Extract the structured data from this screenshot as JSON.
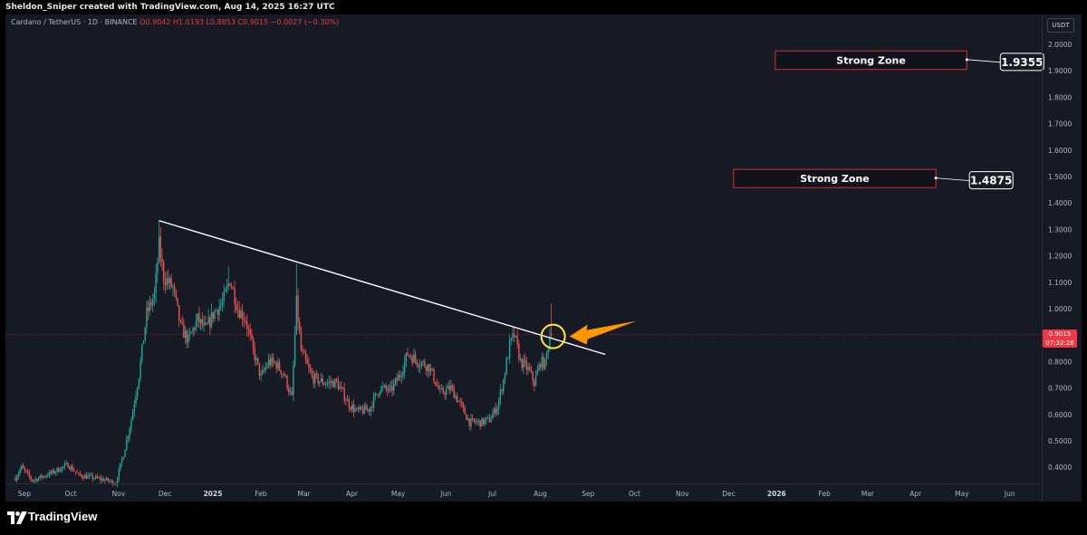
{
  "header": {
    "attribution": "Sheldon_Sniper created with TradingView.com, Aug 14, 2025 16:27 UTC"
  },
  "legend": {
    "symbol": "Cardano / TetherUS · 1D · BINANCE",
    "ohlc": "O0.9042 H1.0193 L0.8853 C0.9015 −0.0027 (−0.30%)"
  },
  "currency_label": "USDT",
  "current_price": {
    "value": "0.9015",
    "countdown": "07:32:26"
  },
  "brand": {
    "name": "TradingView"
  },
  "colors": {
    "background": "#161a25",
    "up": "#26a69a",
    "down": "#ef5350",
    "trendline": "#ffffff",
    "zone_border": "#d32f2f",
    "highlight_circle": "#ffeb3b",
    "arrow": "#ff9800"
  },
  "chart_data": {
    "type": "candlestick",
    "y_ticks": [
      "0.4000",
      "0.5000",
      "0.6000",
      "0.7000",
      "0.8000",
      "0.9000",
      "1.0000",
      "1.1000",
      "1.2000",
      "1.3000",
      "1.4000",
      "1.5000",
      "1.6000",
      "1.7000",
      "1.8000",
      "1.9000",
      "2.0000"
    ],
    "ylim": [
      0.35,
      2.05
    ],
    "x_ticks": [
      "Sep",
      "Oct",
      "Nov",
      "Dec",
      "2025",
      "Feb",
      "Mar",
      "Apr",
      "May",
      "Jun",
      "Jul",
      "Aug",
      "Sep",
      "Oct",
      "Nov",
      "Dec",
      "2026",
      "Feb",
      "Mar",
      "Apr",
      "May",
      "Jun"
    ],
    "price_path": [
      [
        "2024-09-01",
        0.36
      ],
      [
        "2024-09-05",
        0.4
      ],
      [
        "2024-09-12",
        0.35
      ],
      [
        "2024-09-25",
        0.38
      ],
      [
        "2024-10-05",
        0.41
      ],
      [
        "2024-10-12",
        0.37
      ],
      [
        "2024-10-22",
        0.36
      ],
      [
        "2024-10-31",
        0.35
      ],
      [
        "2024-11-05",
        0.34
      ],
      [
        "2024-11-10",
        0.45
      ],
      [
        "2024-11-15",
        0.58
      ],
      [
        "2024-11-20",
        0.75
      ],
      [
        "2024-11-25",
        0.98
      ],
      [
        "2024-11-30",
        1.05
      ],
      [
        "2024-12-03",
        1.24
      ],
      [
        "2024-12-06",
        1.12
      ],
      [
        "2024-12-12",
        1.08
      ],
      [
        "2024-12-17",
        0.93
      ],
      [
        "2024-12-22",
        0.88
      ],
      [
        "2024-12-28",
        0.96
      ],
      [
        "2025-01-02",
        0.92
      ],
      [
        "2025-01-08",
        0.99
      ],
      [
        "2025-01-13",
        1.02
      ],
      [
        "2025-01-18",
        1.11
      ],
      [
        "2025-01-23",
        1.0
      ],
      [
        "2025-01-28",
        0.96
      ],
      [
        "2025-02-02",
        0.84
      ],
      [
        "2025-02-07",
        0.74
      ],
      [
        "2025-02-12",
        0.8
      ],
      [
        "2025-02-17",
        0.79
      ],
      [
        "2025-02-22",
        0.75
      ],
      [
        "2025-02-27",
        0.66
      ],
      [
        "2025-03-02",
        1.02
      ],
      [
        "2025-03-05",
        0.84
      ],
      [
        "2025-03-12",
        0.74
      ],
      [
        "2025-03-20",
        0.72
      ],
      [
        "2025-03-28",
        0.72
      ],
      [
        "2025-04-05",
        0.64
      ],
      [
        "2025-04-10",
        0.61
      ],
      [
        "2025-04-18",
        0.62
      ],
      [
        "2025-04-25",
        0.7
      ],
      [
        "2025-05-02",
        0.69
      ],
      [
        "2025-05-08",
        0.75
      ],
      [
        "2025-05-13",
        0.83
      ],
      [
        "2025-05-20",
        0.8
      ],
      [
        "2025-05-27",
        0.78
      ],
      [
        "2025-06-03",
        0.68
      ],
      [
        "2025-06-10",
        0.7
      ],
      [
        "2025-06-15",
        0.65
      ],
      [
        "2025-06-22",
        0.57
      ],
      [
        "2025-06-30",
        0.57
      ],
      [
        "2025-07-05",
        0.58
      ],
      [
        "2025-07-10",
        0.63
      ],
      [
        "2025-07-14",
        0.73
      ],
      [
        "2025-07-18",
        0.86
      ],
      [
        "2025-07-21",
        0.9
      ],
      [
        "2025-07-25",
        0.8
      ],
      [
        "2025-07-30",
        0.77
      ],
      [
        "2025-08-03",
        0.72
      ],
      [
        "2025-08-07",
        0.8
      ],
      [
        "2025-08-10",
        0.79
      ],
      [
        "2025-08-13",
        0.9
      ]
    ],
    "last_candle": {
      "date": "2025-08-14",
      "open": 0.9042,
      "high": 1.0193,
      "low": 0.8853,
      "close": 0.9015
    },
    "trendline": {
      "start": [
        "2024-12-03",
        1.333
      ],
      "end": [
        "2025-09-18",
        0.827
      ]
    },
    "zones": [
      {
        "label": "Strong Zone",
        "value": "1.9355",
        "date_from": "2026-01-06",
        "date_to": "2026-05-10",
        "low": 1.905,
        "high": 1.975
      },
      {
        "label": "Strong Zone",
        "value": "1.4875",
        "date_from": "2025-12-10",
        "date_to": "2026-04-20",
        "low": 1.458,
        "high": 1.527
      }
    ],
    "grid": false,
    "annotations": [
      "yellow circle at trendline breakout",
      "orange arrow pointing at breakout"
    ]
  }
}
